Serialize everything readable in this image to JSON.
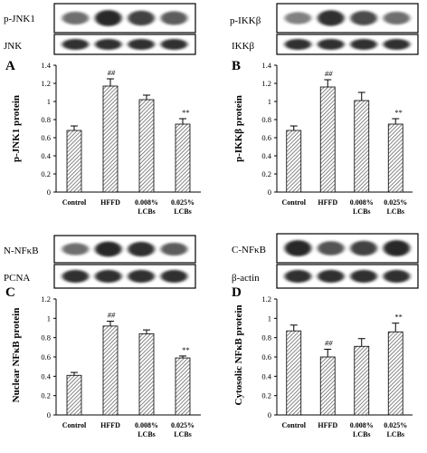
{
  "chart_data": [
    {
      "type": "bar",
      "panel_letter": "A",
      "blots": [
        {
          "label": "p-JNK1",
          "intensity": [
            0.45,
            0.85,
            0.7,
            0.55
          ]
        },
        {
          "label": "JNK",
          "intensity": [
            0.8,
            0.8,
            0.8,
            0.8
          ]
        }
      ],
      "categories": [
        [
          "Control"
        ],
        [
          "HFFD"
        ],
        [
          "0.008%",
          "LCBs"
        ],
        [
          "0.025%",
          "LCBs"
        ]
      ],
      "values": [
        0.68,
        1.17,
        1.02,
        0.75
      ],
      "errors": [
        0.05,
        0.08,
        0.05,
        0.06
      ],
      "annotations": [
        "",
        "##",
        "",
        "**"
      ],
      "ylabel": "p-JNK1 protein",
      "ylim": [
        0,
        1.4
      ],
      "yticks": [
        0,
        0.2,
        0.4,
        0.6,
        0.8,
        1,
        1.2,
        1.4
      ]
    },
    {
      "type": "bar",
      "panel_letter": "B",
      "blots": [
        {
          "label": "p-IKKβ",
          "intensity": [
            0.35,
            0.8,
            0.65,
            0.45
          ]
        },
        {
          "label": "IKKβ",
          "intensity": [
            0.8,
            0.8,
            0.8,
            0.8
          ]
        }
      ],
      "categories": [
        [
          "Control"
        ],
        [
          "HFFD"
        ],
        [
          "0.008%",
          "LCBs"
        ],
        [
          "0.025%",
          "LCBs"
        ]
      ],
      "values": [
        0.68,
        1.16,
        1.01,
        0.75
      ],
      "errors": [
        0.05,
        0.08,
        0.09,
        0.06
      ],
      "annotations": [
        "",
        "##",
        "",
        "**"
      ],
      "ylabel": "p-IKKβ protein",
      "ylim": [
        0,
        1.4
      ],
      "yticks": [
        0,
        0.2,
        0.4,
        0.6,
        0.8,
        1,
        1.2,
        1.4
      ]
    },
    {
      "type": "bar",
      "panel_letter": "C",
      "blots": [
        {
          "label": "N-NFκB",
          "intensity": [
            0.45,
            0.85,
            0.8,
            0.55
          ]
        },
        {
          "label": "PCNA",
          "intensity": [
            0.8,
            0.8,
            0.8,
            0.8
          ]
        }
      ],
      "categories": [
        [
          "Control"
        ],
        [
          "HFFD"
        ],
        [
          "0.008%",
          "LCBs"
        ],
        [
          "0.025%",
          "LCBs"
        ]
      ],
      "values": [
        0.41,
        0.92,
        0.84,
        0.59
      ],
      "errors": [
        0.03,
        0.05,
        0.04,
        0.02
      ],
      "annotations": [
        "",
        "##",
        "",
        "**"
      ],
      "ylabel": "Nuclear NFκB protein",
      "ylim": [
        0,
        1.2
      ],
      "yticks": [
        0,
        0.2,
        0.4,
        0.6,
        0.8,
        1,
        1.2
      ]
    },
    {
      "type": "bar",
      "panel_letter": "D",
      "blots": [
        {
          "label": "C-NFκB",
          "intensity": [
            0.85,
            0.6,
            0.7,
            0.85
          ]
        },
        {
          "label": "β-actin",
          "intensity": [
            0.8,
            0.8,
            0.8,
            0.8
          ]
        }
      ],
      "categories": [
        [
          "Control"
        ],
        [
          "HFFD"
        ],
        [
          "0.008%",
          "LCBs"
        ],
        [
          "0.025%",
          "LCBs"
        ]
      ],
      "values": [
        0.87,
        0.6,
        0.71,
        0.86
      ],
      "errors": [
        0.06,
        0.08,
        0.08,
        0.09
      ],
      "annotations": [
        "",
        "##",
        "",
        "**"
      ],
      "ylabel": "Cytosolic NFκB protein",
      "ylim": [
        0,
        1.2
      ],
      "yticks": [
        0,
        0.2,
        0.4,
        0.6,
        0.8,
        1,
        1.2
      ]
    }
  ]
}
